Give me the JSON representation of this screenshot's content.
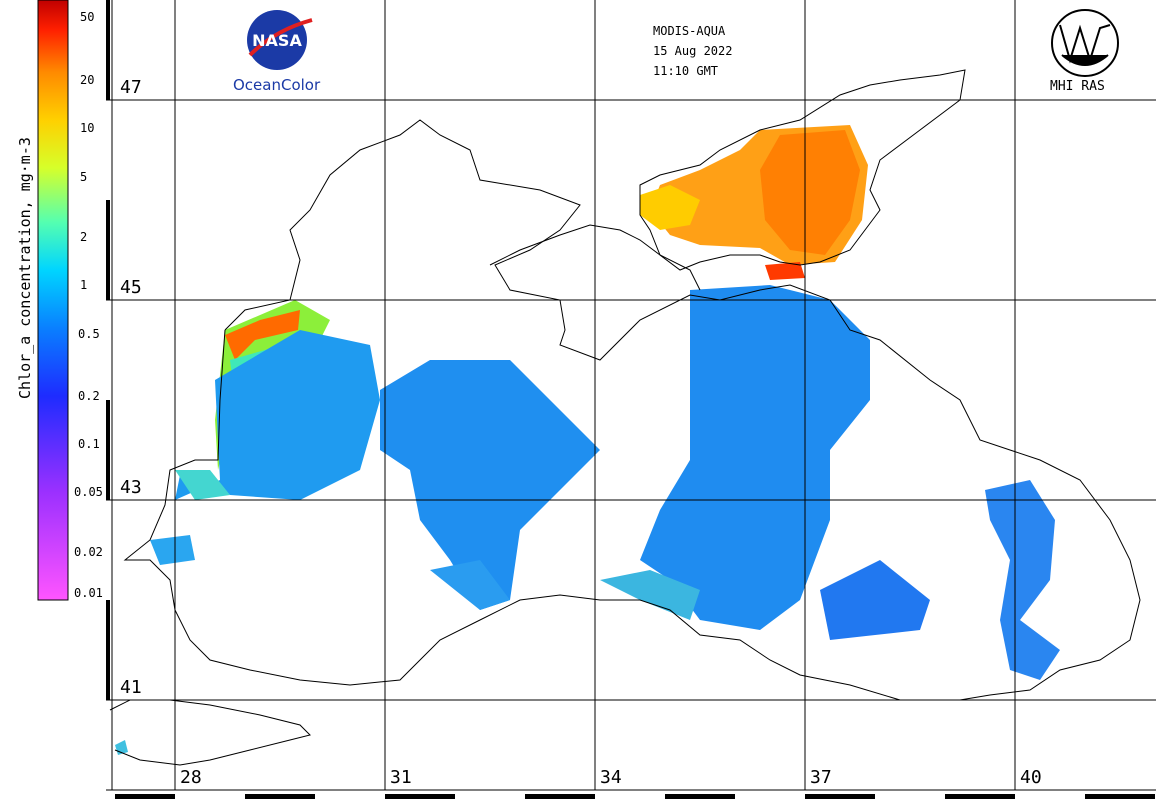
{
  "header": {
    "sensor": "MODIS-AQUA",
    "date": "15 Aug 2022",
    "time": "11:10 GMT"
  },
  "logos": {
    "nasa_caption": "OceanColor",
    "nasa_word": "NASA",
    "mhi_caption": "MHI RAS"
  },
  "colorbar": {
    "title": "Chlor_a concentration, mg·m-3",
    "ticks": [
      "50",
      "20",
      "10",
      "5",
      "2",
      "1",
      "0.5",
      "0.2",
      "0.1",
      "0.05",
      "0.02",
      "0.01"
    ],
    "colors": [
      "#ff55ff",
      "#9b30ff",
      "#1e2cff",
      "#0a7dff",
      "#00d5ff",
      "#55ffb0",
      "#d6ff2a",
      "#ffd000",
      "#ff8a00",
      "#ff2000",
      "#c00000"
    ]
  },
  "grid": {
    "latitudes": [
      "47",
      "45",
      "43",
      "41"
    ],
    "longitudes": [
      "28",
      "31",
      "34",
      "37",
      "40"
    ]
  }
}
